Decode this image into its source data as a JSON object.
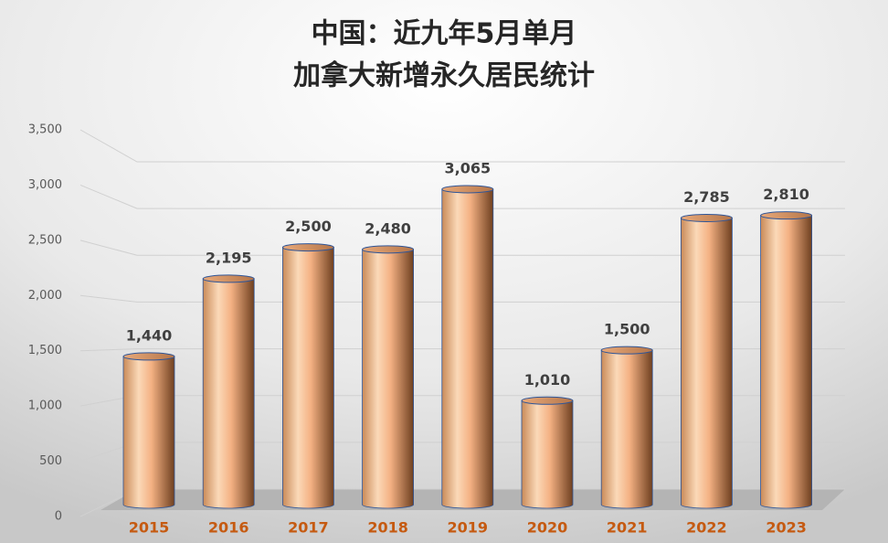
{
  "chart_data": {
    "type": "bar",
    "title": [
      "中国：近九年5月单月",
      "加拿大新增永久居民统计"
    ],
    "categories": [
      "2015",
      "2016",
      "2017",
      "2018",
      "2019",
      "2020",
      "2021",
      "2022",
      "2023"
    ],
    "values": [
      1440,
      2195,
      2500,
      2480,
      3065,
      1010,
      1500,
      2785,
      2810
    ],
    "value_labels": [
      "1,440",
      "2,195",
      "2,500",
      "2,480",
      "3,065",
      "1,010",
      "1,500",
      "2,785",
      "2,810"
    ],
    "color": "#f4b183",
    "ylim": [
      0,
      3500
    ],
    "yticks": [
      0,
      500,
      {
        "value": 1000,
        "label": "1,000"
      },
      {
        "value": 1500,
        "label": "1,500"
      },
      {
        "value": 2000,
        "label": "2,000"
      },
      {
        "value": 2500,
        "label": "2,500"
      },
      {
        "value": 3000,
        "label": "3,000"
      },
      {
        "value": 3500,
        "label": "3,500"
      }
    ],
    "grid": true
  }
}
